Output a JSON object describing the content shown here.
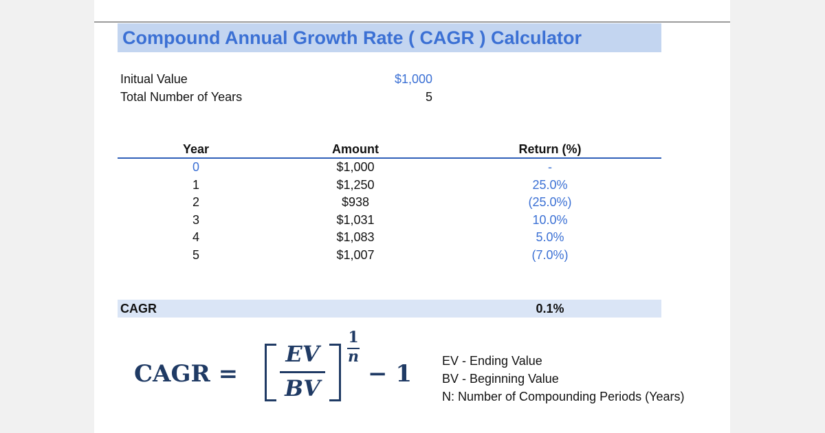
{
  "title": "Compound Annual Growth Rate ( CAGR ) Calculator",
  "inputs": [
    {
      "label": "Initual Value",
      "value": "$1,000"
    },
    {
      "label": "Total Number of Years",
      "value": "5"
    }
  ],
  "table": {
    "headers": [
      "Year",
      "Amount",
      "Return (%)"
    ],
    "rows": [
      [
        "0",
        "$1,000",
        "-"
      ],
      [
        "1",
        "$1,250",
        "25.0%"
      ],
      [
        "2",
        "$938",
        "(25.0%)"
      ],
      [
        "3",
        "$1,031",
        "10.0%"
      ],
      [
        "4",
        "$1,083",
        "5.0%"
      ],
      [
        "5",
        "$1,007",
        "(7.0%)"
      ]
    ]
  },
  "cagr": {
    "label": "CAGR",
    "value": "0.1%"
  },
  "formula": {
    "lhs": "CAGR =",
    "numerator": "EV",
    "denominator": "BV",
    "exp_num": "1",
    "exp_den": "n",
    "tail": "− 1"
  },
  "legend": [
    "EV - Ending Value",
    "BV - Beginning Value",
    "N: Number of Compounding Periods (Years)"
  ],
  "colors": {
    "accent": "#3b70d4",
    "title_band": "#c3d5f0",
    "cagr_band": "#dae5f6",
    "formula": "#1f3a64"
  }
}
